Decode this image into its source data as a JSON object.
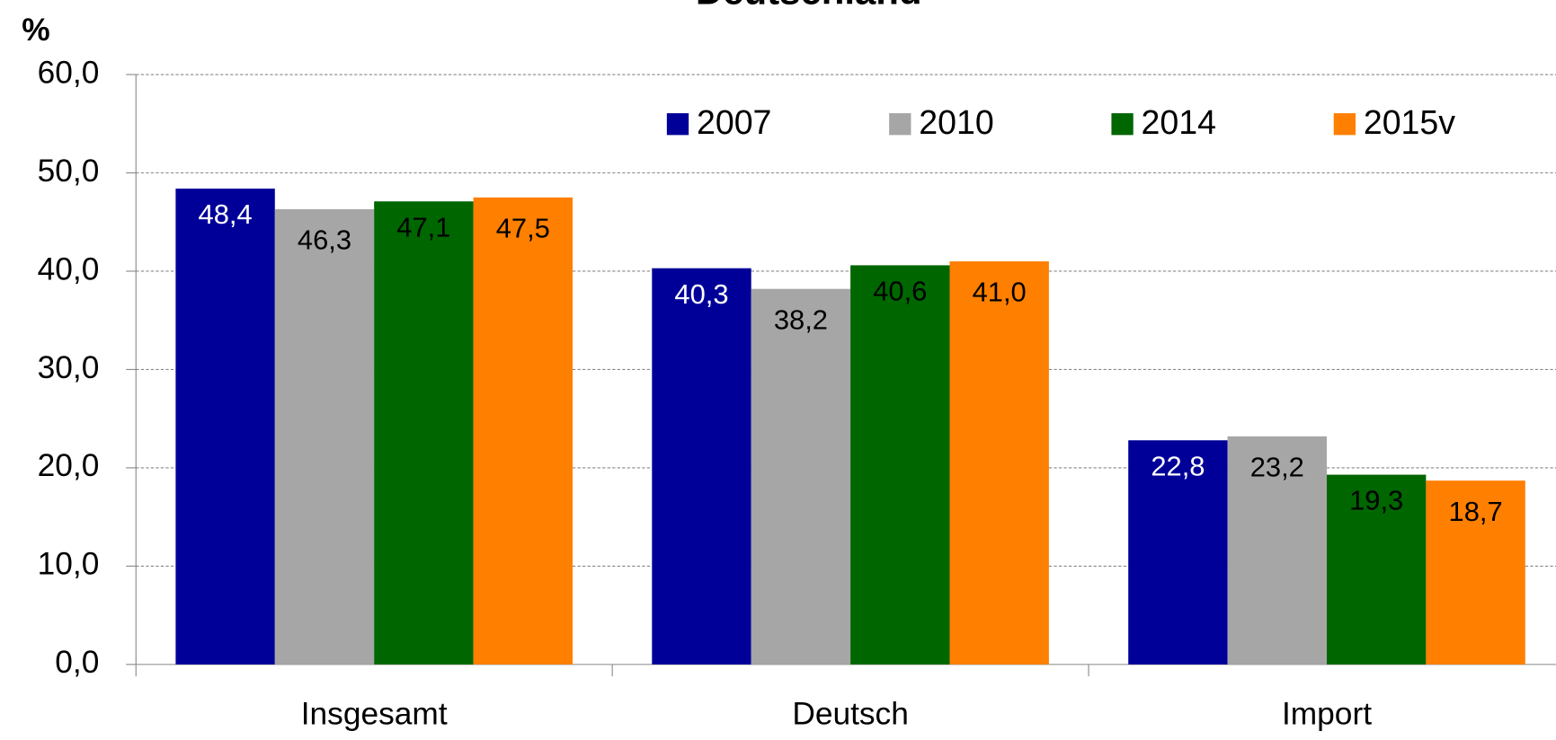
{
  "chart_data": {
    "type": "bar",
    "title": "Deutschland",
    "y_label": "%",
    "categories": [
      "Insgesamt",
      "Deutsch",
      "Import"
    ],
    "series": [
      {
        "name": "2007",
        "color": "#000099",
        "label_color": "#ffffff",
        "values": [
          48.4,
          40.3,
          22.8
        ],
        "value_labels": [
          "48,4",
          "40,3",
          "22,8"
        ]
      },
      {
        "name": "2010",
        "color": "#a6a6a6",
        "label_color": "#000000",
        "values": [
          46.3,
          38.2,
          23.2
        ],
        "value_labels": [
          "46,3",
          "38,2",
          "23,2"
        ]
      },
      {
        "name": "2014",
        "color": "#006600",
        "label_color": "#000000",
        "values": [
          47.1,
          40.6,
          19.3
        ],
        "value_labels": [
          "47,1",
          "40,6",
          "19,3"
        ]
      },
      {
        "name": "2015v",
        "color": "#ff7f00",
        "label_color": "#000000",
        "values": [
          47.5,
          41.0,
          18.7
        ],
        "value_labels": [
          "47,5",
          "41,0",
          "18,7"
        ]
      }
    ],
    "ylim": [
      0,
      60
    ],
    "yticks": [
      {
        "value": 0,
        "label": "0,0"
      },
      {
        "value": 10,
        "label": "10,0"
      },
      {
        "value": 20,
        "label": "20,0"
      },
      {
        "value": 30,
        "label": "30,0"
      },
      {
        "value": 40,
        "label": "40,0"
      },
      {
        "value": 50,
        "label": "50,0"
      },
      {
        "value": 60,
        "label": "60,0"
      }
    ],
    "grid": true,
    "legend": "top"
  }
}
